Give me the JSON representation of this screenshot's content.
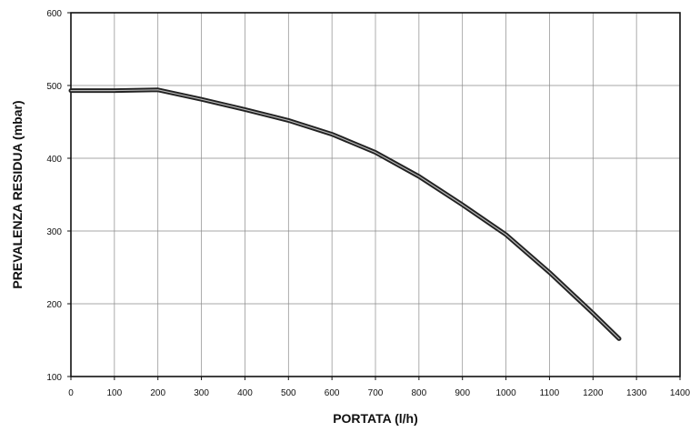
{
  "chart_data": {
    "type": "line",
    "title": "",
    "xlabel": "PORTATA (l/h)",
    "ylabel": "PREVALENZA RESIDUA (mbar)",
    "xlim": [
      0,
      1400
    ],
    "ylim": [
      100,
      600
    ],
    "grid": true,
    "x_ticks": [
      0,
      100,
      200,
      300,
      400,
      500,
      600,
      700,
      800,
      900,
      1000,
      1100,
      1200,
      1300,
      1400
    ],
    "y_ticks": [
      100,
      200,
      300,
      400,
      500,
      600
    ],
    "x_tick_labels": [
      "0",
      "100",
      "200",
      "300",
      "400",
      "500",
      "600",
      "700",
      "800",
      "900",
      "1000",
      "1100",
      "1200",
      "1300",
      "1400"
    ],
    "y_tick_labels": [
      "100",
      "200",
      "300",
      "400",
      "500",
      "600"
    ],
    "series": [
      {
        "color": "#222222",
        "points": [
          {
            "x": 0,
            "y": 493
          },
          {
            "x": 100,
            "y": 493
          },
          {
            "x": 200,
            "y": 494
          },
          {
            "x": 300,
            "y": 481
          },
          {
            "x": 400,
            "y": 467
          },
          {
            "x": 500,
            "y": 452
          },
          {
            "x": 600,
            "y": 433
          },
          {
            "x": 700,
            "y": 408
          },
          {
            "x": 800,
            "y": 375
          },
          {
            "x": 900,
            "y": 336
          },
          {
            "x": 1000,
            "y": 295
          },
          {
            "x": 1100,
            "y": 243
          },
          {
            "x": 1200,
            "y": 187
          },
          {
            "x": 1260,
            "y": 152
          }
        ]
      }
    ]
  }
}
